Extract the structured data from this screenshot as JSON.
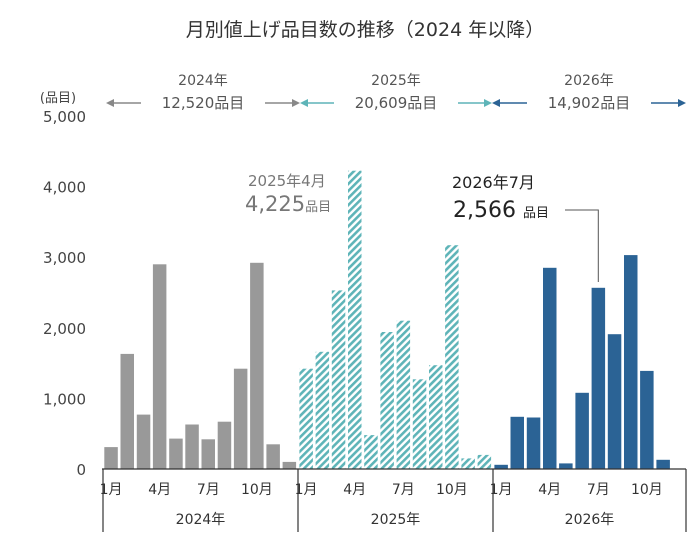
{
  "chart_data": {
    "type": "bar",
    "title": "月別値上げ品目数の推移（2024 年以降）",
    "y_unit_label": "(品目)",
    "ylim": [
      0,
      5000
    ],
    "y_ticks": [
      "0",
      "1,000",
      "2,000",
      "3,000",
      "4,000",
      "5,000"
    ],
    "y_tick_values": [
      0,
      1000,
      2000,
      3000,
      4000,
      5000
    ],
    "x_tick_labels": [
      "1月",
      "4月",
      "7月",
      "10月"
    ],
    "series": [
      {
        "year_label": "2024年",
        "total_label": "12,520品目",
        "values": [
          310,
          1630,
          770,
          2900,
          430,
          630,
          420,
          670,
          1420,
          2920,
          350,
          100
        ],
        "color": "#999999",
        "pattern": "solid"
      },
      {
        "year_label": "2025年",
        "total_label": "20,609品目",
        "values": [
          1420,
          1660,
          2530,
          4225,
          480,
          1940,
          2100,
          1270,
          1470,
          3170,
          150,
          200
        ],
        "color": "#5eb4b8",
        "pattern": "hatched"
      },
      {
        "year_label": "2026年",
        "total_label": "14,902品目",
        "values": [
          60,
          740,
          730,
          2850,
          80,
          1080,
          2566,
          1910,
          3030,
          1390,
          130
        ],
        "color": "#2b6395",
        "pattern": "solid"
      }
    ],
    "annotations": [
      {
        "line1": "2025年4月",
        "number": "4,225",
        "unit": "品目",
        "series_index": 1,
        "month_index": 3
      },
      {
        "line1": "2026年7月",
        "number": "2,566",
        "unit": "品目",
        "series_index": 2,
        "month_index": 6
      }
    ],
    "grid": false,
    "legend": "none"
  }
}
